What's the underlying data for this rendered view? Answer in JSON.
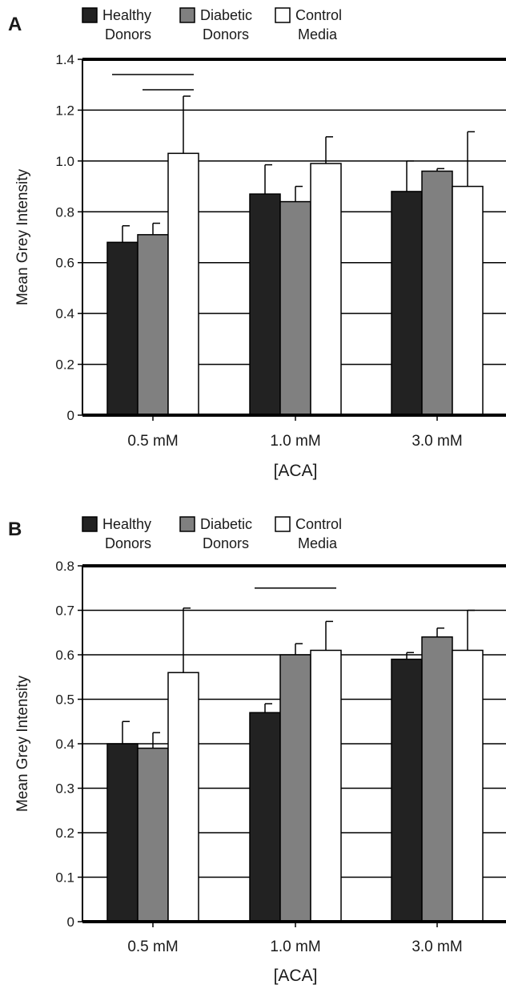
{
  "colors": {
    "healthy": "#222222",
    "diabetic": "#808080",
    "control": "#ffffff",
    "axis": "#000000",
    "grid": "#000000"
  },
  "chart_data": [
    {
      "panel": "A",
      "type": "bar",
      "categories": [
        "0.5 mM",
        "1.0 mM",
        "3.0 mM"
      ],
      "xlabel": "[ACA]",
      "ylabel": "Mean Grey Intensity",
      "ylim": [
        0,
        1.4
      ],
      "yticks": [
        0,
        0.2,
        0.4,
        0.6,
        0.8,
        1.0,
        1.2,
        1.4
      ],
      "ytick_labels": [
        "0",
        "0.2",
        "0.4",
        "0.6",
        "0.8",
        "1.0",
        "1.2",
        "1.4"
      ],
      "grid": true,
      "legend": {
        "placement": "top-left",
        "entries": [
          {
            "line1": "Healthy",
            "line2": "Donors"
          },
          {
            "line1": "Diabetic",
            "line2": "Donors"
          },
          {
            "line1": "Control",
            "line2": "Media"
          }
        ]
      },
      "series": [
        {
          "values": [
            0.68,
            0.87,
            0.88
          ],
          "errors": [
            0.065,
            0.115,
            0.12
          ]
        },
        {
          "values": [
            0.71,
            0.84,
            0.96
          ],
          "errors": [
            0.045,
            0.06,
            0.01
          ]
        },
        {
          "values": [
            1.03,
            0.99,
            0.9
          ],
          "errors": [
            0.225,
            0.105,
            0.215
          ]
        }
      ],
      "significance_bars": [
        {
          "category": 0,
          "from_series": 0,
          "to_series": 2,
          "y": 1.34
        },
        {
          "category": 0,
          "from_series": 1,
          "to_series": 2,
          "y": 1.28
        }
      ]
    },
    {
      "panel": "B",
      "type": "bar",
      "categories": [
        "0.5 mM",
        "1.0 mM",
        "3.0 mM"
      ],
      "xlabel": "[ACA]",
      "ylabel": "Mean Grey Intensity",
      "ylim": [
        0,
        0.8
      ],
      "yticks": [
        0,
        0.1,
        0.2,
        0.3,
        0.4,
        0.5,
        0.6,
        0.7,
        0.8
      ],
      "ytick_labels": [
        "0",
        "0.1",
        "0.2",
        "0.3",
        "0.4",
        "0.5",
        "0.6",
        "0.7",
        "0.8"
      ],
      "grid": true,
      "legend": {
        "placement": "top-left",
        "entries": [
          {
            "line1": "Healthy",
            "line2": "Donors"
          },
          {
            "line1": "Diabetic",
            "line2": "Donors"
          },
          {
            "line1": "Control",
            "line2": "Media"
          }
        ]
      },
      "series": [
        {
          "values": [
            0.4,
            0.47,
            0.59
          ],
          "errors": [
            0.05,
            0.02,
            0.015
          ]
        },
        {
          "values": [
            0.39,
            0.6,
            0.64
          ],
          "errors": [
            0.035,
            0.025,
            0.02
          ]
        },
        {
          "values": [
            0.56,
            0.61,
            0.61
          ],
          "errors": [
            0.145,
            0.065,
            0.09
          ]
        }
      ],
      "significance_bars": [
        {
          "category": 1,
          "from_series": 0,
          "to_series": 2,
          "y": 0.75
        }
      ]
    }
  ]
}
